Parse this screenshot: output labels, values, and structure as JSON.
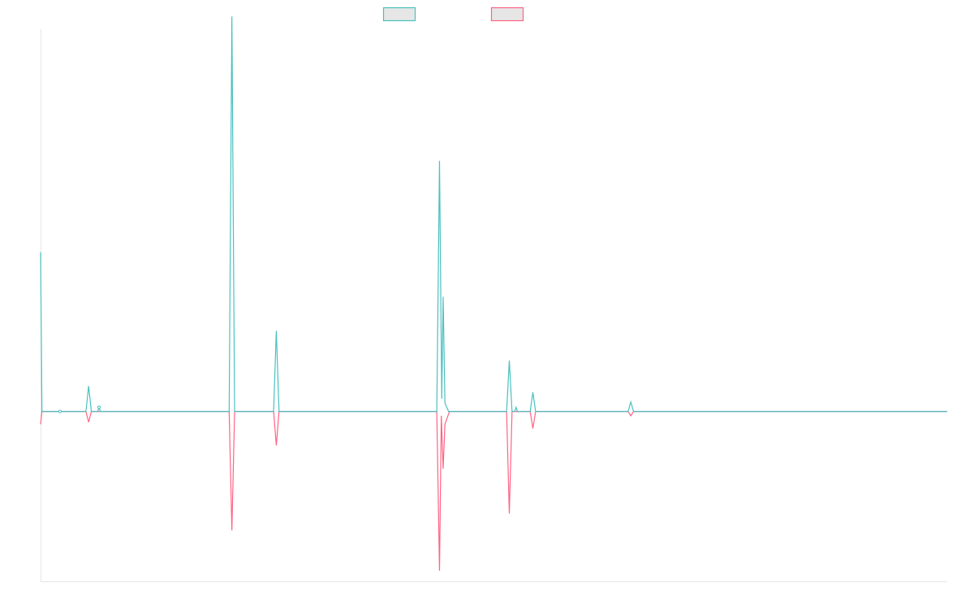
{
  "chart_data": {
    "type": "line",
    "title": "",
    "xlabel": "",
    "ylabel": "",
    "grid": false,
    "legend_position": "top-center",
    "x_range": [
      0,
      1000
    ],
    "y_range": [
      -0.8,
      1.8
    ],
    "series": [
      {
        "color": "#4bc0c0",
        "legend_fill": "#e6e6e6",
        "points": [
          [
            0,
            0.75
          ],
          [
            1.5,
            0
          ],
          [
            50,
            0
          ],
          [
            53,
            0.12
          ],
          [
            56,
            0
          ],
          [
            63,
            0
          ],
          [
            64.5,
            0.02
          ],
          [
            66,
            0
          ],
          [
            208,
            0
          ],
          [
            211,
            1.86
          ],
          [
            214,
            0
          ],
          [
            257,
            0
          ],
          [
            260,
            0.38
          ],
          [
            263,
            0
          ],
          [
            437,
            0
          ],
          [
            440,
            1.18
          ],
          [
            442.5,
            0.06
          ],
          [
            444,
            0.54
          ],
          [
            446,
            0.04
          ],
          [
            450,
            0
          ],
          [
            514,
            0
          ],
          [
            517,
            0.24
          ],
          [
            520,
            0
          ],
          [
            523,
            0
          ],
          [
            524.5,
            0.02
          ],
          [
            526,
            0
          ],
          [
            540,
            0
          ],
          [
            543,
            0.09
          ],
          [
            546,
            0
          ],
          [
            648,
            0
          ],
          [
            651,
            0.045
          ],
          [
            654,
            0
          ],
          [
            1000,
            0
          ]
        ]
      },
      {
        "color": "#ff6384",
        "legend_fill": "#e6e6e6",
        "points": [
          [
            0,
            -0.06
          ],
          [
            1.5,
            0
          ],
          [
            50,
            0
          ],
          [
            53,
            -0.05
          ],
          [
            56,
            0
          ],
          [
            208,
            0
          ],
          [
            211,
            -0.56
          ],
          [
            214,
            0
          ],
          [
            257,
            0
          ],
          [
            260,
            -0.16
          ],
          [
            263,
            0
          ],
          [
            437,
            0
          ],
          [
            440,
            -0.75
          ],
          [
            442,
            -0.02
          ],
          [
            444,
            -0.27
          ],
          [
            446,
            -0.06
          ],
          [
            451,
            0
          ],
          [
            514,
            0
          ],
          [
            517,
            -0.48
          ],
          [
            520,
            0
          ],
          [
            540,
            0
          ],
          [
            543,
            -0.08
          ],
          [
            546,
            0
          ],
          [
            648,
            0
          ],
          [
            651,
            -0.02
          ],
          [
            654,
            0
          ],
          [
            1000,
            0
          ]
        ]
      }
    ]
  }
}
